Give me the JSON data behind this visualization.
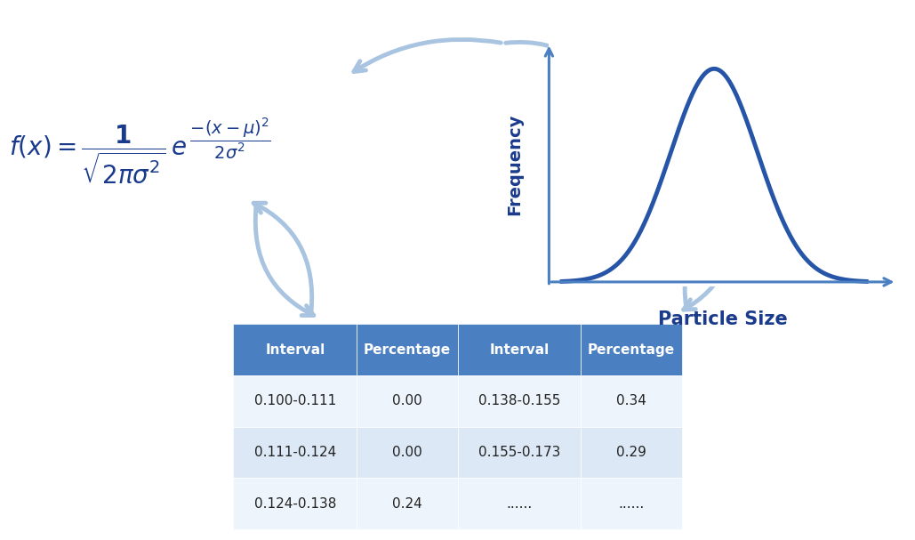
{
  "bg_color": "#ffffff",
  "formula_color": "#1a3a8c",
  "arrow_color": "#a8c4e0",
  "curve_color": "#2655a8",
  "axis_color": "#4a7fc1",
  "table_header_bg": "#4a7fc1",
  "table_row_even_bg": "#dce8f5",
  "table_row_odd_bg": "#eef4fb",
  "table_header_text": "#ffffff",
  "table_data_text": "#222222",
  "xlabel": "Particle Size",
  "ylabel": "Frequency",
  "xlabel_color": "#1a3a8c",
  "ylabel_color": "#1a3a8c",
  "table_headers": [
    "Interval",
    "Percentage",
    "Interval",
    "Percentage"
  ],
  "table_data": [
    [
      "0.100-0.111",
      "0.00",
      "0.138-0.155",
      "0.34"
    ],
    [
      "0.111-0.124",
      "0.00",
      "0.155-0.173",
      "0.29"
    ],
    [
      "0.124-0.138",
      "0.24",
      "......",
      "......"
    ]
  ]
}
